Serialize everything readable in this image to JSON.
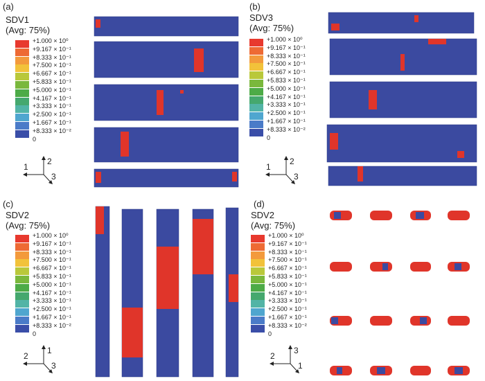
{
  "panels": [
    {
      "label": "(a)",
      "variable": "SDV1",
      "average": "(Avg: 75%)",
      "axes": [
        "1",
        "2",
        "3"
      ]
    },
    {
      "label": "(b)",
      "variable": "SDV3",
      "average": "(Avg: 75%)",
      "axes": [
        "1",
        "2",
        "3"
      ]
    },
    {
      "label": "(c)",
      "variable": "SDV2",
      "average": "(Avg: 75%)",
      "axes": [
        "2",
        "1",
        "3"
      ]
    },
    {
      "label": "(d)",
      "variable": "SDV2",
      "average": "(Avg: 75%)",
      "axes": [
        "2",
        "3",
        "1"
      ]
    }
  ],
  "legend_levels": [
    {
      "text": "+1.000 × 10⁰",
      "color": "#e8392e"
    },
    {
      "text": "+9.167 × 10⁻¹",
      "color": "#ee6a34"
    },
    {
      "text": "+8.333 × 10⁻¹",
      "color": "#f39a3c"
    },
    {
      "text": "+7.500 × 10⁻¹",
      "color": "#f2c23a"
    },
    {
      "text": "+6.667 × 10⁻¹",
      "color": "#b9c83a"
    },
    {
      "text": "+5.833 × 10⁻¹",
      "color": "#7ab83c"
    },
    {
      "text": "+5.000 × 10⁻¹",
      "color": "#4dab47"
    },
    {
      "text": "+4.167 × 10⁻¹",
      "color": "#45a86e"
    },
    {
      "text": "+3.333 × 10⁻¹",
      "color": "#52b4a6"
    },
    {
      "text": "+2.500 × 10⁻¹",
      "color": "#4fa6cf"
    },
    {
      "text": "+1.667 × 10⁻¹",
      "color": "#4a7bc8"
    },
    {
      "text": "+8.333 × 10⁻²",
      "color": "#3a4ea8"
    }
  ],
  "legend_min": "0",
  "colors": {
    "intact": "#3b4aa0",
    "damaged": "#e0352a"
  }
}
